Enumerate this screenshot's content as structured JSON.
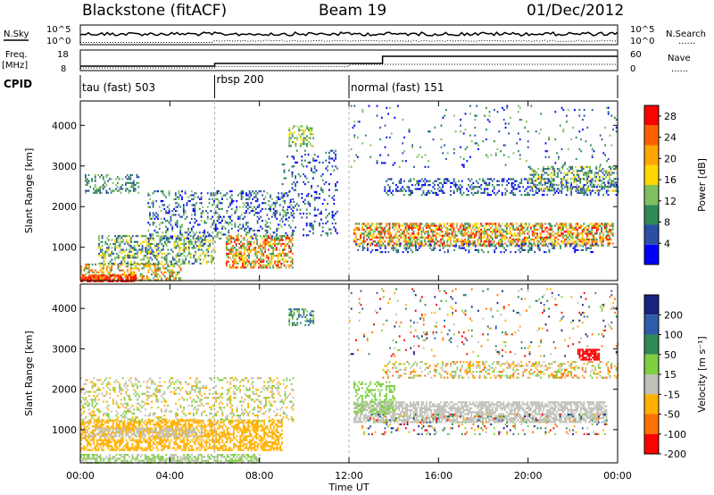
{
  "header": {
    "station": "Blackstone (fitACF)",
    "beam": "Beam 19",
    "date": "01/Dec/2012"
  },
  "top_panel_labels": {
    "nsky": "N.Sky",
    "nsearch": "N.Search",
    "freq": "Freq.",
    "freq_unit": "[MHz]",
    "cpid": "CPID",
    "nave": "Nave",
    "dots": "......",
    "nsky_ticks": [
      "10^5",
      "10^0"
    ],
    "nsearch_ticks": [
      "10^5",
      "10^0"
    ],
    "freq_ticks": [
      "18",
      "8"
    ],
    "nave_ticks": [
      "60",
      "0"
    ]
  },
  "cpid_segments": [
    {
      "label": "tau (fast) 503",
      "start_h": 0,
      "end_h": 6
    },
    {
      "label": "rbsp 200",
      "start_h": 6,
      "end_h": 12
    },
    {
      "label": "normal (fast) 151",
      "start_h": 12,
      "end_h": 24
    }
  ],
  "chart_data": [
    {
      "type": "heatmap",
      "name": "power",
      "ylabel": "Slant Range [km]",
      "yticks": [
        1000,
        2000,
        3000,
        4000
      ],
      "ylim": [
        180,
        4600
      ],
      "xlim": [
        0,
        24
      ],
      "colorbar_label": "Power [dB]",
      "colorbar_ticks": [
        4,
        8,
        12,
        16,
        20,
        24,
        28
      ],
      "colorbar_colors": [
        "#0000ff",
        "#2a4fa5",
        "#2e8b57",
        "#7fbf60",
        "#ffd700",
        "#ffa500",
        "#ff6000",
        "#ff0000"
      ],
      "colorbar_range": [
        0,
        30
      ],
      "regions": [
        {
          "t0": 0.2,
          "t1": 2.6,
          "r0": 2350,
          "r1": 2800,
          "density": 0.35,
          "c0": 1,
          "c1": 3
        },
        {
          "t0": 0.8,
          "t1": 6.0,
          "r0": 600,
          "r1": 1300,
          "density": 0.45,
          "c0": 1,
          "c1": 4
        },
        {
          "t0": 0.0,
          "t1": 4.5,
          "r0": 180,
          "r1": 600,
          "density": 0.5,
          "c0": 2,
          "c1": 6
        },
        {
          "t0": 0.0,
          "t1": 2.5,
          "r0": 180,
          "r1": 330,
          "density": 0.8,
          "c0": 6,
          "c1": 7
        },
        {
          "t0": 6.5,
          "t1": 9.5,
          "r0": 500,
          "r1": 1300,
          "density": 0.55,
          "c0": 2,
          "c1": 7
        },
        {
          "t0": 3.0,
          "t1": 9.5,
          "r0": 1200,
          "r1": 2400,
          "density": 0.25,
          "c0": 0,
          "c1": 3
        },
        {
          "t0": 9.0,
          "t1": 11.5,
          "r0": 1300,
          "r1": 3400,
          "density": 0.15,
          "c0": 0,
          "c1": 2
        },
        {
          "t0": 12.2,
          "t1": 23.8,
          "r0": 1050,
          "r1": 1600,
          "density": 0.6,
          "c0": 2,
          "c1": 7
        },
        {
          "t0": 12.3,
          "t1": 23.0,
          "r0": 900,
          "r1": 1100,
          "density": 0.25,
          "c0": 0,
          "c1": 2
        },
        {
          "t0": 13.5,
          "t1": 24.0,
          "r0": 2300,
          "r1": 2700,
          "density": 0.3,
          "c0": 0,
          "c1": 2
        },
        {
          "t0": 20.0,
          "t1": 24.0,
          "r0": 2400,
          "r1": 3000,
          "density": 0.4,
          "c0": 1,
          "c1": 4
        },
        {
          "t0": 9.3,
          "t1": 10.4,
          "r0": 3500,
          "r1": 4000,
          "density": 0.4,
          "c0": 2,
          "c1": 4
        },
        {
          "t0": 12.0,
          "t1": 24.0,
          "r0": 3000,
          "r1": 4500,
          "density": 0.04,
          "c0": 0,
          "c1": 3
        }
      ]
    },
    {
      "type": "heatmap",
      "name": "velocity",
      "ylabel": "Slant Range [km]",
      "xlabel": "Time UT",
      "yticks": [
        1000,
        2000,
        3000,
        4000
      ],
      "ylim": [
        180,
        4600
      ],
      "xlim": [
        0,
        24
      ],
      "xticks": [
        "00:00",
        "04:00",
        "08:00",
        "12:00",
        "16:00",
        "20:00",
        "00:00"
      ],
      "colorbar_label": "Velocity [m s⁻¹]",
      "colorbar_ticks": [
        200,
        100,
        50,
        15,
        -15,
        -50,
        -100,
        -200
      ],
      "colorbar_colors": [
        "#1a237e",
        "#2e5ca8",
        "#2e8b57",
        "#7fcf40",
        "#c0c0b8",
        "#ffb000",
        "#ff7000",
        "#ff0000"
      ],
      "regions": [
        {
          "t0": 0.0,
          "t1": 9.0,
          "r0": 500,
          "r1": 1250,
          "density": 0.6,
          "c0": 5,
          "c1": 5
        },
        {
          "t0": 0.2,
          "t1": 5.5,
          "r0": 850,
          "r1": 1050,
          "density": 0.5,
          "c0": 4,
          "c1": 4
        },
        {
          "t0": 0.0,
          "t1": 8.0,
          "r0": 180,
          "r1": 400,
          "density": 0.6,
          "c0": 3,
          "c1": 4
        },
        {
          "t0": 0.0,
          "t1": 9.5,
          "r0": 1200,
          "r1": 2300,
          "density": 0.25,
          "c0": 3,
          "c1": 5
        },
        {
          "t0": 12.2,
          "t1": 23.5,
          "r0": 1200,
          "r1": 1700,
          "density": 0.7,
          "c0": 4,
          "c1": 4
        },
        {
          "t0": 12.2,
          "t1": 14.0,
          "r0": 1400,
          "r1": 2200,
          "density": 0.4,
          "c0": 3,
          "c1": 3
        },
        {
          "t0": 12.5,
          "t1": 23.5,
          "r0": 900,
          "r1": 1400,
          "density": 0.15,
          "c0": 0,
          "c1": 7
        },
        {
          "t0": 13.5,
          "t1": 24.0,
          "r0": 2300,
          "r1": 2700,
          "density": 0.3,
          "c0": 3,
          "c1": 6
        },
        {
          "t0": 22.2,
          "t1": 23.2,
          "r0": 2750,
          "r1": 3000,
          "density": 0.7,
          "c0": 7,
          "c1": 7
        },
        {
          "t0": 9.3,
          "t1": 10.4,
          "r0": 3600,
          "r1": 4000,
          "density": 0.45,
          "c0": 1,
          "c1": 3
        },
        {
          "t0": 12.0,
          "t1": 24.0,
          "r0": 2800,
          "r1": 4500,
          "density": 0.05,
          "c0": 0,
          "c1": 7
        }
      ]
    }
  ]
}
